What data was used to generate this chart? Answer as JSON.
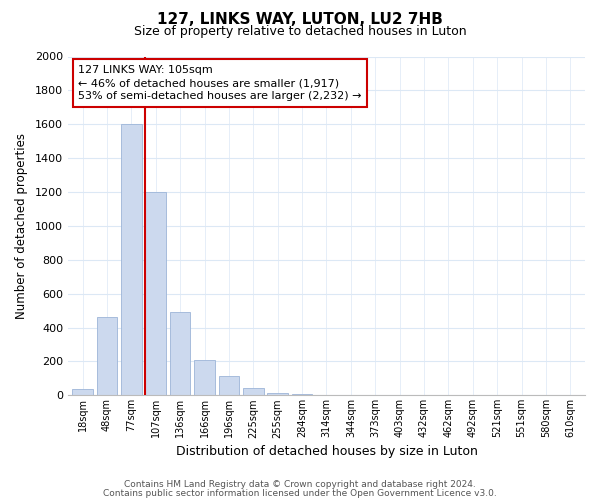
{
  "title": "127, LINKS WAY, LUTON, LU2 7HB",
  "subtitle": "Size of property relative to detached houses in Luton",
  "xlabel": "Distribution of detached houses by size in Luton",
  "ylabel": "Number of detached properties",
  "bar_labels": [
    "18sqm",
    "48sqm",
    "77sqm",
    "107sqm",
    "136sqm",
    "166sqm",
    "196sqm",
    "225sqm",
    "255sqm",
    "284sqm",
    "314sqm",
    "344sqm",
    "373sqm",
    "403sqm",
    "432sqm",
    "462sqm",
    "492sqm",
    "521sqm",
    "551sqm",
    "580sqm",
    "610sqm"
  ],
  "bar_values": [
    35,
    460,
    1600,
    1200,
    490,
    210,
    115,
    45,
    15,
    5,
    0,
    0,
    0,
    0,
    0,
    0,
    0,
    0,
    0,
    0,
    0
  ],
  "bar_color": "#ccd9ee",
  "bar_edge_color": "#9db5d8",
  "marker_line_color": "#cc0000",
  "marker_index": 3,
  "ylim": [
    0,
    2000
  ],
  "yticks": [
    0,
    200,
    400,
    600,
    800,
    1000,
    1200,
    1400,
    1600,
    1800,
    2000
  ],
  "annotation_title": "127 LINKS WAY: 105sqm",
  "annotation_line1": "← 46% of detached houses are smaller (1,917)",
  "annotation_line2": "53% of semi-detached houses are larger (2,232) →",
  "annotation_box_color": "#ffffff",
  "annotation_box_edge": "#cc0000",
  "footer_line1": "Contains HM Land Registry data © Crown copyright and database right 2024.",
  "footer_line2": "Contains public sector information licensed under the Open Government Licence v3.0.",
  "background_color": "#ffffff",
  "grid_color": "#dce8f5"
}
